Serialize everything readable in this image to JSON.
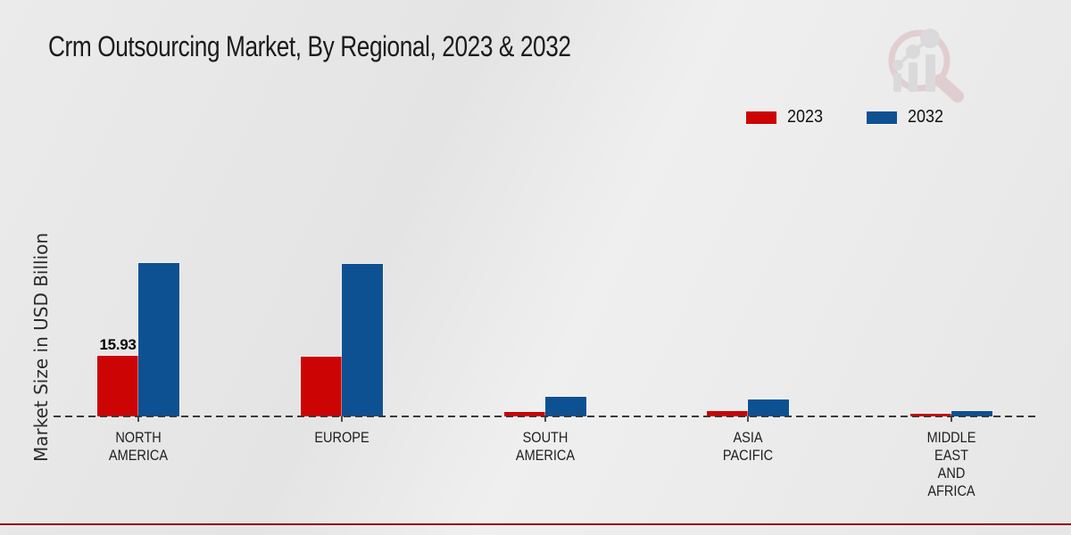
{
  "page": {
    "title": "Crm Outsourcing Market, By Regional, 2023 & 2032"
  },
  "chart_data": {
    "type": "bar",
    "title": "Crm Outsourcing Market, By Regional, 2023 & 2032",
    "xlabel": "",
    "ylabel": "Market Size in USD Billion",
    "unit": "USD Billion",
    "categories": [
      "NORTH\nAMERICA",
      "EUROPE",
      "SOUTH\nAMERICA",
      "ASIA\nPACIFIC",
      "MIDDLE\nEAST\nAND\nAFRICA"
    ],
    "series": [
      {
        "name": "2023",
        "color": "#cc0404",
        "values": [
          15.93,
          15.7,
          1.2,
          1.35,
          0.6
        ],
        "point_labels": [
          "15.93",
          "",
          "",
          "",
          ""
        ]
      },
      {
        "name": "2032",
        "color": "#0e5192",
        "values": [
          40.3,
          40.0,
          5.2,
          4.4,
          1.3
        ],
        "point_labels": [
          "",
          "",
          "",
          "",
          ""
        ]
      }
    ],
    "legend_position": "top-right",
    "legend_entries": [
      "2023",
      "2032"
    ],
    "baseline_style": "dashed",
    "grid": false,
    "ylim": [
      0,
      45
    ],
    "annotations": [
      {
        "category": "NORTH AMERICA",
        "series": "2023",
        "text": "15.93"
      }
    ]
  },
  "branding": {
    "footer_color": "#c20101",
    "footer_top_line_color": "#8f0000",
    "logo_icon": "magnifier-growth-chart-watermark",
    "logo_pink": "#c98b92",
    "logo_gray": "#b4b4b8"
  }
}
